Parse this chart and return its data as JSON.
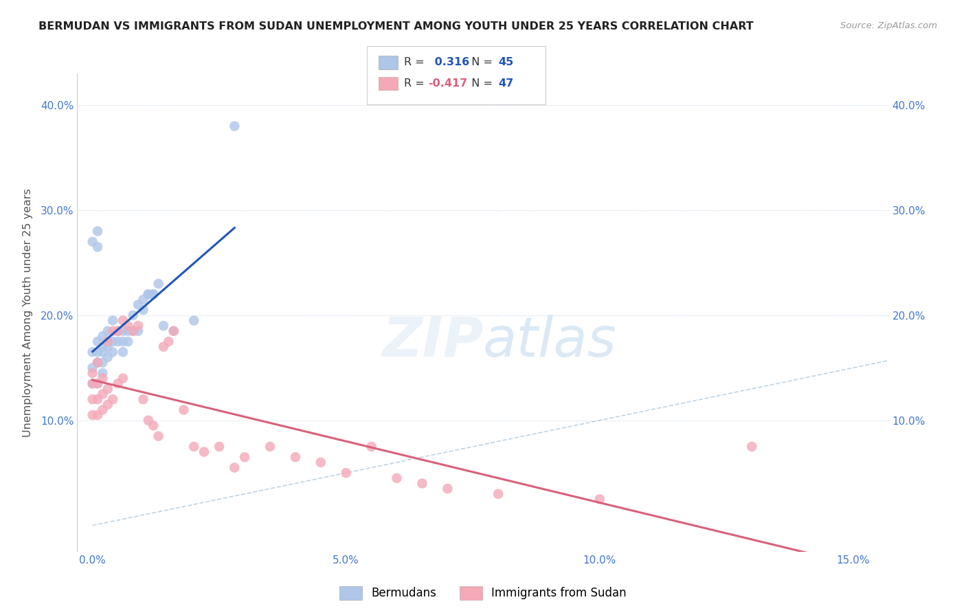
{
  "title": "BERMUDAN VS IMMIGRANTS FROM SUDAN UNEMPLOYMENT AMONG YOUTH UNDER 25 YEARS CORRELATION CHART",
  "source": "Source: ZipAtlas.com",
  "ylabel": "Unemployment Among Youth under 25 years",
  "R1": 0.316,
  "N1": 45,
  "R2": -0.417,
  "N2": 47,
  "color_blue": "#aec6e8",
  "color_pink": "#f4a8b8",
  "color_blue_line": "#2255bb",
  "color_pink_line": "#d9607a",
  "color_diag": "#b8cfe0",
  "xlim": [
    -0.003,
    0.157
  ],
  "ylim": [
    -0.025,
    0.43
  ],
  "x_ticks": [
    0.0,
    0.05,
    0.1,
    0.15
  ],
  "x_tick_labels": [
    "0.0%",
    "5.0%",
    "10.0%",
    "15.0%"
  ],
  "y_ticks": [
    0.1,
    0.2,
    0.3,
    0.4
  ],
  "y_tick_labels": [
    "10.0%",
    "20.0%",
    "30.0%",
    "40.0%"
  ],
  "legend_label1": "Bermudans",
  "legend_label2": "Immigrants from Sudan",
  "blue_x": [
    0.001,
    0.001,
    0.001,
    0.001,
    0.001,
    0.002,
    0.002,
    0.002,
    0.002,
    0.003,
    0.003,
    0.003,
    0.004,
    0.004,
    0.005,
    0.006,
    0.006,
    0.007,
    0.008,
    0.009,
    0.01,
    0.011,
    0.012,
    0.013,
    0.0,
    0.0,
    0.0,
    0.0,
    0.001,
    0.001,
    0.002,
    0.003,
    0.004,
    0.005,
    0.006,
    0.007,
    0.008,
    0.009,
    0.01,
    0.011,
    0.012,
    0.014,
    0.016,
    0.02,
    0.028
  ],
  "blue_y": [
    0.135,
    0.155,
    0.155,
    0.165,
    0.175,
    0.145,
    0.155,
    0.165,
    0.18,
    0.16,
    0.175,
    0.185,
    0.165,
    0.195,
    0.175,
    0.175,
    0.185,
    0.185,
    0.185,
    0.21,
    0.215,
    0.22,
    0.22,
    0.23,
    0.135,
    0.15,
    0.165,
    0.27,
    0.265,
    0.28,
    0.17,
    0.17,
    0.175,
    0.185,
    0.165,
    0.175,
    0.2,
    0.185,
    0.205,
    0.22,
    0.22,
    0.19,
    0.185,
    0.195,
    0.38
  ],
  "pink_x": [
    0.0,
    0.0,
    0.0,
    0.0,
    0.001,
    0.001,
    0.001,
    0.001,
    0.002,
    0.002,
    0.002,
    0.003,
    0.003,
    0.003,
    0.004,
    0.004,
    0.005,
    0.005,
    0.006,
    0.006,
    0.007,
    0.008,
    0.009,
    0.01,
    0.011,
    0.012,
    0.013,
    0.014,
    0.015,
    0.016,
    0.018,
    0.02,
    0.022,
    0.025,
    0.028,
    0.03,
    0.035,
    0.04,
    0.045,
    0.05,
    0.055,
    0.06,
    0.065,
    0.07,
    0.08,
    0.1,
    0.13
  ],
  "pink_y": [
    0.105,
    0.12,
    0.135,
    0.145,
    0.105,
    0.12,
    0.135,
    0.155,
    0.11,
    0.125,
    0.14,
    0.115,
    0.13,
    0.175,
    0.12,
    0.185,
    0.135,
    0.185,
    0.14,
    0.195,
    0.19,
    0.185,
    0.19,
    0.12,
    0.1,
    0.095,
    0.085,
    0.17,
    0.175,
    0.185,
    0.11,
    0.075,
    0.07,
    0.075,
    0.055,
    0.065,
    0.075,
    0.065,
    0.06,
    0.05,
    0.075,
    0.045,
    0.04,
    0.035,
    0.03,
    0.025,
    0.075
  ]
}
